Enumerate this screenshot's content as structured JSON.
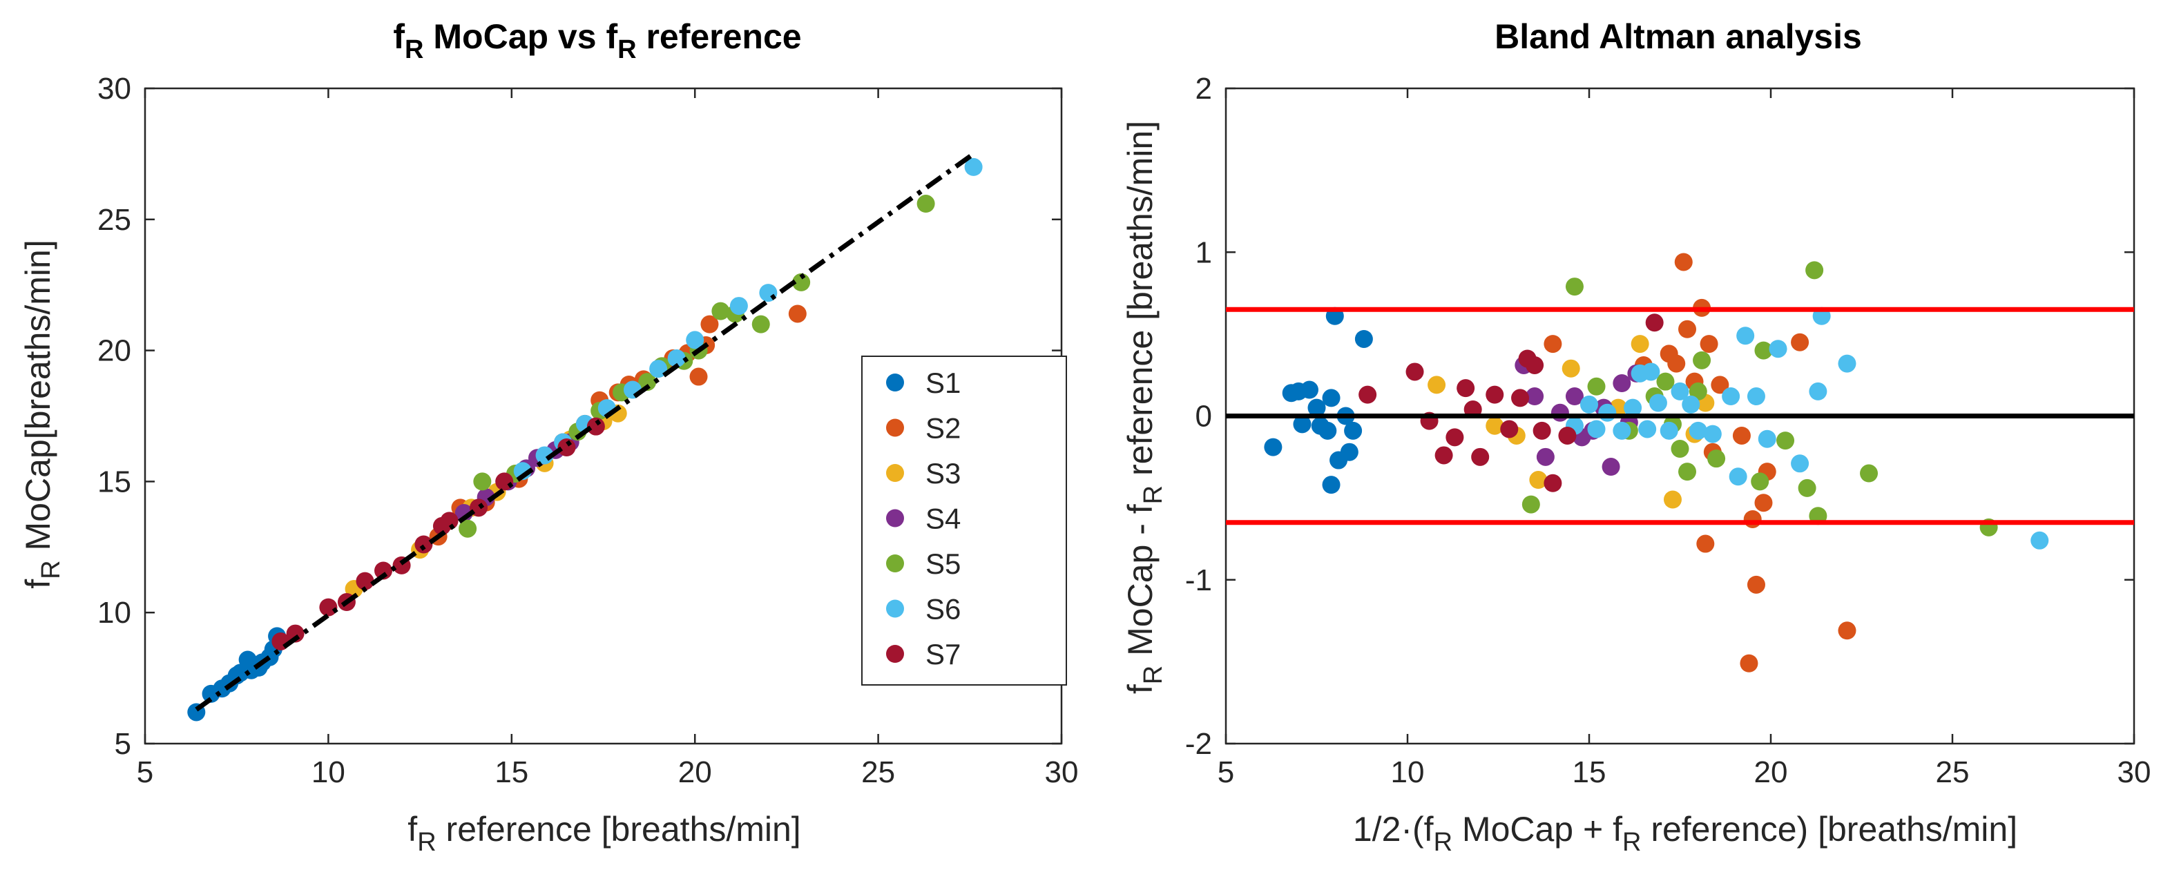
{
  "chart_data": [
    {
      "type": "scatter",
      "title_main": "f",
      "title_sub1": "R",
      "title_mid": " MoCap vs f",
      "title_sub2": "R",
      "title_end": " reference",
      "xlabel_pre": "f",
      "xlabel_sub": "R",
      "xlabel_post": " reference [breaths/min]",
      "ylabel_pre": "f",
      "ylabel_sub": "R",
      "ylabel_post": " MoCap[breaths/min]",
      "xlim": [
        5,
        30
      ],
      "ylim": [
        5,
        30
      ],
      "xticks": [
        "5",
        "10",
        "15",
        "20",
        "25",
        "30"
      ],
      "yticks": [
        "5",
        "10",
        "15",
        "20",
        "25",
        "30"
      ],
      "legend_placement": "lower-right",
      "fit_line": {
        "x": [
          6.4,
          27.6
        ],
        "y": [
          6.3,
          27.5
        ],
        "style": "dash-dot",
        "color": "#000000"
      },
      "series": [
        {
          "name": "S1",
          "color": "#0072BD",
          "points": [
            [
              6.4,
              6.2
            ],
            [
              6.8,
              6.9
            ],
            [
              7.1,
              7.1
            ],
            [
              7.3,
              7.3
            ],
            [
              7.5,
              7.6
            ],
            [
              7.6,
              7.7
            ],
            [
              7.8,
              8.2
            ],
            [
              7.9,
              7.8
            ],
            [
              8.1,
              7.9
            ],
            [
              8.2,
              8.1
            ],
            [
              8.4,
              8.3
            ],
            [
              8.5,
              8.6
            ],
            [
              8.6,
              9.1
            ]
          ]
        },
        {
          "name": "S2",
          "color": "#D95319",
          "points": [
            [
              13.0,
              12.9
            ],
            [
              13.6,
              14.0
            ],
            [
              14.3,
              14.2
            ],
            [
              15.2,
              15.1
            ],
            [
              16.4,
              16.5
            ],
            [
              17.0,
              17.2
            ],
            [
              17.4,
              18.1
            ],
            [
              17.9,
              18.4
            ],
            [
              18.2,
              18.7
            ],
            [
              18.6,
              18.9
            ],
            [
              19.1,
              19.4
            ],
            [
              19.4,
              19.7
            ],
            [
              19.8,
              19.9
            ],
            [
              20.1,
              19.0
            ],
            [
              20.3,
              20.2
            ],
            [
              20.4,
              21.0
            ],
            [
              22.8,
              21.4
            ]
          ]
        },
        {
          "name": "S3",
          "color": "#EDB120",
          "points": [
            [
              10.7,
              10.9
            ],
            [
              12.5,
              12.4
            ],
            [
              13.9,
              14.0
            ],
            [
              14.6,
              14.6
            ],
            [
              15.9,
              15.7
            ],
            [
              16.6,
              16.6
            ],
            [
              17.5,
              17.3
            ],
            [
              17.9,
              17.6
            ]
          ]
        },
        {
          "name": "S4",
          "color": "#7E2F8E",
          "points": [
            [
              13.7,
              13.8
            ],
            [
              14.3,
              14.4
            ],
            [
              14.9,
              15.0
            ],
            [
              15.4,
              15.5
            ],
            [
              15.7,
              15.9
            ],
            [
              16.2,
              16.2
            ],
            [
              16.6,
              16.5
            ]
          ]
        },
        {
          "name": "S5",
          "color": "#77AC30",
          "points": [
            [
              13.8,
              13.2
            ],
            [
              14.2,
              15.0
            ],
            [
              15.1,
              15.3
            ],
            [
              16.8,
              16.9
            ],
            [
              17.4,
              17.7
            ],
            [
              18.0,
              18.4
            ],
            [
              18.7,
              18.8
            ],
            [
              19.1,
              19.4
            ],
            [
              19.7,
              19.6
            ],
            [
              20.1,
              20.0
            ],
            [
              20.7,
              21.5
            ],
            [
              21.1,
              21.4
            ],
            [
              21.8,
              21.0
            ],
            [
              22.9,
              22.6
            ],
            [
              26.3,
              25.6
            ]
          ]
        },
        {
          "name": "S6",
          "color": "#4DBEEE",
          "points": [
            [
              15.3,
              15.4
            ],
            [
              15.9,
              16.0
            ],
            [
              16.4,
              16.5
            ],
            [
              17.0,
              17.2
            ],
            [
              17.6,
              17.8
            ],
            [
              18.3,
              18.5
            ],
            [
              19.0,
              19.3
            ],
            [
              19.5,
              19.7
            ],
            [
              20.0,
              20.4
            ],
            [
              21.2,
              21.7
            ],
            [
              22.0,
              22.2
            ],
            [
              27.6,
              27.0
            ]
          ]
        },
        {
          "name": "S7",
          "color": "#A2142F",
          "points": [
            [
              8.7,
              8.9
            ],
            [
              9.1,
              9.2
            ],
            [
              10.0,
              10.2
            ],
            [
              10.5,
              10.4
            ],
            [
              11.0,
              11.2
            ],
            [
              11.5,
              11.6
            ],
            [
              12.0,
              11.8
            ],
            [
              12.6,
              12.6
            ],
            [
              13.1,
              13.3
            ],
            [
              13.3,
              13.5
            ],
            [
              14.1,
              14.0
            ],
            [
              14.8,
              15.0
            ],
            [
              16.5,
              16.3
            ],
            [
              17.3,
              17.1
            ]
          ]
        }
      ]
    },
    {
      "type": "scatter",
      "title": "Bland Altman analysis",
      "xlabel_pre": "1/2·(f",
      "xlabel_sub1": "R",
      "xlabel_mid": " MoCap + f",
      "xlabel_sub2": "R",
      "xlabel_post": " reference)  [breaths/min]",
      "ylabel_pre": "f",
      "ylabel_sub1": "R",
      "ylabel_mid": " MoCap - f",
      "ylabel_sub2": "R",
      "ylabel_post": " reference  [breaths/min]",
      "xlim": [
        5,
        30
      ],
      "ylim": [
        -2,
        2
      ],
      "xticks": [
        "5",
        "10",
        "15",
        "20",
        "25",
        "30"
      ],
      "yticks": [
        "-2",
        "-1",
        "0",
        "1",
        "2"
      ],
      "hlines": [
        {
          "y": 0.65,
          "color": "#FF0000"
        },
        {
          "y": 0,
          "color": "#000000"
        },
        {
          "y": -0.65,
          "color": "#FF0000"
        }
      ],
      "series": [
        {
          "name": "S1",
          "color": "#0072BD",
          "points": [
            [
              6.3,
              -0.19
            ],
            [
              6.8,
              0.14
            ],
            [
              7.0,
              0.15
            ],
            [
              7.1,
              -0.05
            ],
            [
              7.3,
              0.16
            ],
            [
              7.5,
              0.05
            ],
            [
              7.6,
              -0.06
            ],
            [
              7.8,
              -0.09
            ],
            [
              7.9,
              0.11
            ],
            [
              7.9,
              -0.42
            ],
            [
              8.0,
              0.61
            ],
            [
              8.1,
              -0.27
            ],
            [
              8.3,
              0.0
            ],
            [
              8.4,
              -0.22
            ],
            [
              8.5,
              -0.09
            ],
            [
              8.8,
              0.47
            ]
          ]
        },
        {
          "name": "S2",
          "color": "#D95319",
          "points": [
            [
              14.0,
              0.44
            ],
            [
              16.5,
              0.31
            ],
            [
              17.2,
              0.38
            ],
            [
              17.4,
              0.32
            ],
            [
              17.6,
              0.94
            ],
            [
              17.7,
              0.53
            ],
            [
              17.9,
              0.21
            ],
            [
              18.1,
              0.66
            ],
            [
              18.2,
              -0.78
            ],
            [
              18.3,
              0.44
            ],
            [
              18.4,
              -0.22
            ],
            [
              18.6,
              0.19
            ],
            [
              19.2,
              -0.12
            ],
            [
              19.4,
              -1.51
            ],
            [
              19.5,
              -0.63
            ],
            [
              19.6,
              -1.03
            ],
            [
              19.8,
              -0.53
            ],
            [
              19.9,
              -0.34
            ],
            [
              20.8,
              0.45
            ],
            [
              22.1,
              -1.31
            ]
          ]
        },
        {
          "name": "S3",
          "color": "#EDB120",
          "points": [
            [
              10.8,
              0.19
            ],
            [
              12.4,
              -0.06
            ],
            [
              13.0,
              -0.12
            ],
            [
              13.6,
              -0.39
            ],
            [
              14.5,
              0.29
            ],
            [
              15.8,
              0.05
            ],
            [
              16.4,
              0.44
            ],
            [
              17.3,
              -0.51
            ],
            [
              17.9,
              -0.11
            ],
            [
              18.2,
              0.08
            ]
          ]
        },
        {
          "name": "S4",
          "color": "#7E2F8E",
          "points": [
            [
              13.2,
              0.31
            ],
            [
              13.5,
              0.12
            ],
            [
              13.8,
              -0.25
            ],
            [
              14.2,
              0.02
            ],
            [
              14.6,
              0.12
            ],
            [
              14.8,
              -0.13
            ],
            [
              15.1,
              -0.09
            ],
            [
              15.4,
              0.05
            ],
            [
              15.6,
              -0.31
            ],
            [
              15.9,
              0.2
            ],
            [
              16.1,
              -0.04
            ],
            [
              16.3,
              0.26
            ]
          ]
        },
        {
          "name": "S5",
          "color": "#77AC30",
          "points": [
            [
              13.4,
              -0.54
            ],
            [
              14.6,
              0.79
            ],
            [
              15.2,
              0.18
            ],
            [
              16.1,
              -0.09
            ],
            [
              16.8,
              0.12
            ],
            [
              17.1,
              0.21
            ],
            [
              17.3,
              -0.05
            ],
            [
              17.5,
              -0.2
            ],
            [
              17.7,
              -0.34
            ],
            [
              18.0,
              0.15
            ],
            [
              18.1,
              0.34
            ],
            [
              18.5,
              -0.26
            ],
            [
              19.7,
              -0.4
            ],
            [
              19.8,
              0.4
            ],
            [
              20.4,
              -0.15
            ],
            [
              21.0,
              -0.44
            ],
            [
              21.2,
              0.89
            ],
            [
              21.3,
              -0.61
            ],
            [
              22.7,
              -0.35
            ],
            [
              26.0,
              -0.68
            ]
          ]
        },
        {
          "name": "S6",
          "color": "#4DBEEE",
          "points": [
            [
              14.6,
              -0.06
            ],
            [
              15.0,
              0.07
            ],
            [
              15.2,
              -0.08
            ],
            [
              15.5,
              0.02
            ],
            [
              15.9,
              -0.09
            ],
            [
              16.2,
              0.05
            ],
            [
              16.4,
              0.26
            ],
            [
              16.6,
              -0.08
            ],
            [
              16.7,
              0.27
            ],
            [
              16.9,
              0.08
            ],
            [
              17.2,
              -0.09
            ],
            [
              17.5,
              0.15
            ],
            [
              17.8,
              0.07
            ],
            [
              18.0,
              -0.09
            ],
            [
              18.4,
              -0.11
            ],
            [
              18.9,
              0.12
            ],
            [
              19.1,
              -0.37
            ],
            [
              19.3,
              0.49
            ],
            [
              19.6,
              0.12
            ],
            [
              19.9,
              -0.14
            ],
            [
              20.2,
              0.41
            ],
            [
              20.8,
              -0.29
            ],
            [
              21.3,
              0.15
            ],
            [
              21.4,
              0.61
            ],
            [
              22.1,
              0.32
            ],
            [
              27.4,
              -0.76
            ]
          ]
        },
        {
          "name": "S7",
          "color": "#A2142F",
          "points": [
            [
              8.9,
              0.13
            ],
            [
              10.2,
              0.27
            ],
            [
              10.6,
              -0.03
            ],
            [
              11.0,
              -0.24
            ],
            [
              11.3,
              -0.13
            ],
            [
              11.6,
              0.17
            ],
            [
              11.8,
              0.04
            ],
            [
              12.0,
              -0.25
            ],
            [
              12.4,
              0.13
            ],
            [
              12.8,
              -0.08
            ],
            [
              13.1,
              0.11
            ],
            [
              13.3,
              0.35
            ],
            [
              13.5,
              0.31
            ],
            [
              13.7,
              -0.09
            ],
            [
              14.0,
              -0.41
            ],
            [
              14.4,
              -0.12
            ],
            [
              16.8,
              0.57
            ]
          ]
        }
      ]
    }
  ]
}
